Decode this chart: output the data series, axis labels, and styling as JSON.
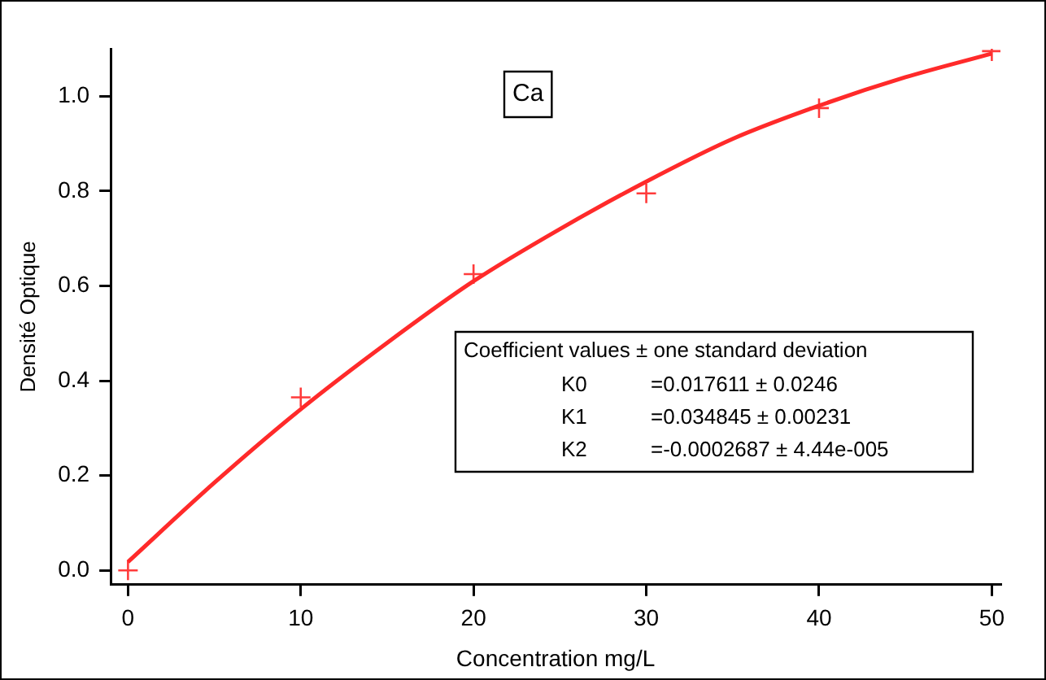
{
  "chart_data": {
    "type": "scatter",
    "xlabel": "Concentration mg/L",
    "ylabel": "Densité Optique",
    "xlim": [
      -1,
      50.5
    ],
    "xticks": [
      0,
      10,
      20,
      30,
      40,
      50
    ],
    "ylim": [
      -0.03,
      1.1
    ],
    "yticks": [
      {
        "value": 0,
        "label": "0.0"
      },
      {
        "value": 0.2,
        "label": "0.2"
      },
      {
        "value": 0.4,
        "label": "0.4"
      },
      {
        "value": 0.6,
        "label": "0.6"
      },
      {
        "value": 0.8,
        "label": "0.8"
      },
      {
        "value": 1,
        "label": "1.0"
      }
    ],
    "grid": false,
    "legend": false,
    "series": [
      {
        "color": "#ff3b3b",
        "marker": "cross",
        "x": [
          0,
          10,
          20,
          30,
          40,
          50
        ],
        "values": [
          0,
          0.365,
          0.625,
          0.795,
          0.975,
          1.095
        ]
      },
      {
        "type": "line",
        "color": "#ff2a2a",
        "marker": "none",
        "line_style": "solid",
        "x": [
          0,
          5,
          10,
          15,
          20,
          25,
          30,
          35,
          40,
          45,
          50
        ],
        "values": [
          0.018,
          0.185,
          0.34,
          0.48,
          0.61,
          0.72,
          0.82,
          0.91,
          0.98,
          1.04,
          1.09
        ]
      }
    ],
    "annotations": [
      "Ca",
      "Coefficient values ± one standard deviation",
      "K0",
      "=0.017611 ± 0.0246",
      "K1",
      "=0.034845 ± 0.00231",
      "K2",
      "=-0.0002687 ± 4.44e-005"
    ]
  }
}
